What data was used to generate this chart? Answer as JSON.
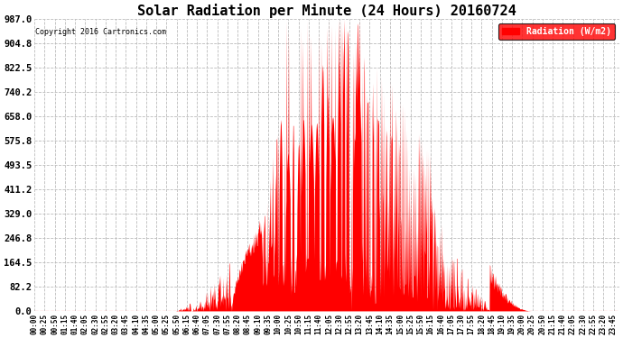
{
  "title": "Solar Radiation per Minute (24 Hours) 20160724",
  "copyright_text": "Copyright 2016 Cartronics.com",
  "legend_label": "Radiation (W/m2)",
  "background_color": "#ffffff",
  "plot_bg_color": "#ffffff",
  "bar_color": "#ff0000",
  "grid_color": "#bbbbbb",
  "ytick_labels": [
    "0.0",
    "82.2",
    "164.5",
    "246.8",
    "329.0",
    "411.2",
    "493.5",
    "575.8",
    "658.0",
    "740.2",
    "822.5",
    "904.8",
    "987.0"
  ],
  "ytick_values": [
    0.0,
    82.2,
    164.5,
    246.8,
    329.0,
    411.2,
    493.5,
    575.8,
    658.0,
    740.2,
    822.5,
    904.8,
    987.0
  ],
  "ylim": [
    0.0,
    987.0
  ],
  "xtick_step_minutes": 25,
  "total_minutes": 1440
}
